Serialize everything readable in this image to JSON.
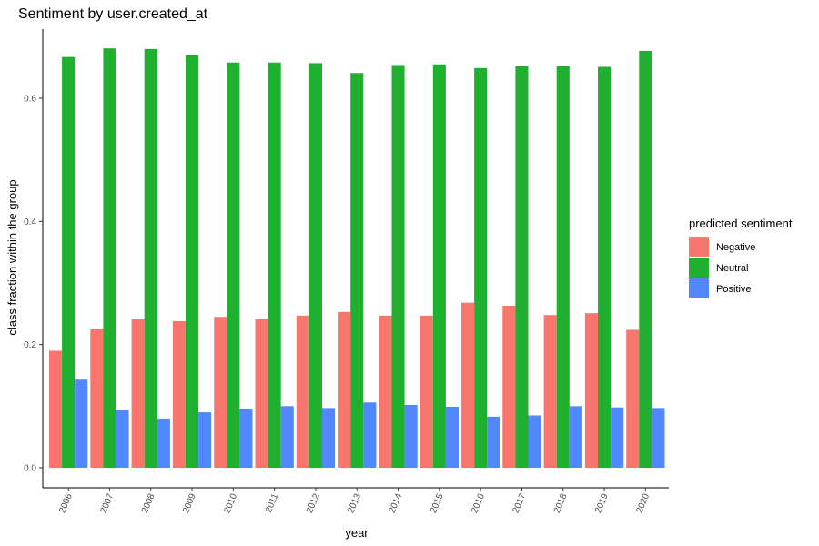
{
  "chart_data": {
    "type": "bar",
    "title": "Sentiment by user.created_at",
    "xlabel": "year",
    "ylabel": "class fraction within the group",
    "ylim": [
      0,
      0.71
    ],
    "yticks": [
      "0.0",
      "0.2",
      "0.4",
      "0.6"
    ],
    "grid": false,
    "legend": {
      "title": "predicted sentiment",
      "placement": "right"
    },
    "categories": [
      "2006",
      "2007",
      "2008",
      "2009",
      "2010",
      "2011",
      "2012",
      "2013",
      "2014",
      "2015",
      "2016",
      "2017",
      "2018",
      "2019",
      "2020"
    ],
    "series": [
      {
        "name": "Negative",
        "color": "#F8766D",
        "values": [
          0.19,
          0.226,
          0.241,
          0.238,
          0.245,
          0.242,
          0.247,
          0.253,
          0.247,
          0.247,
          0.268,
          0.263,
          0.248,
          0.251,
          0.224
        ]
      },
      {
        "name": "Neutral",
        "color": "#1FB02F",
        "values": [
          0.667,
          0.681,
          0.68,
          0.671,
          0.658,
          0.658,
          0.657,
          0.641,
          0.654,
          0.655,
          0.649,
          0.652,
          0.652,
          0.651,
          0.677
        ]
      },
      {
        "name": "Positive",
        "color": "#5188FF",
        "values": [
          0.143,
          0.094,
          0.08,
          0.09,
          0.096,
          0.1,
          0.097,
          0.106,
          0.102,
          0.099,
          0.083,
          0.085,
          0.1,
          0.098,
          0.097
        ]
      }
    ]
  }
}
